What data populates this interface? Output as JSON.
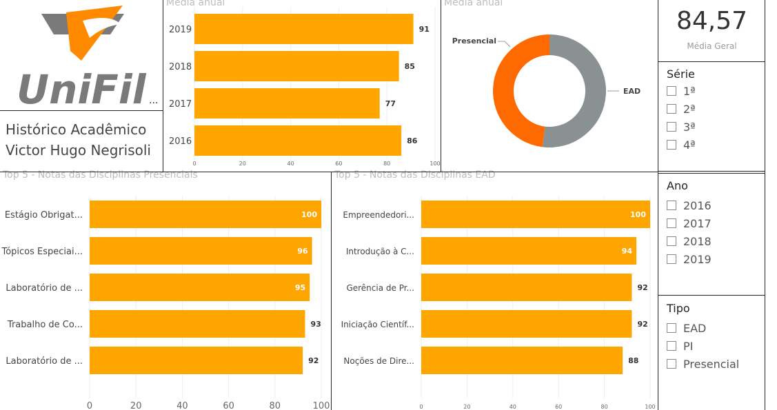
{
  "header": {
    "logo_text": "UniFil",
    "line1": "Histórico Acadêmico",
    "line2": "Victor Hugo Negrisoli",
    "more": "..."
  },
  "card": {
    "value": "84,57",
    "label": "Média Geral"
  },
  "slicers": [
    {
      "title": "Série",
      "options": [
        "1ª",
        "2ª",
        "3ª",
        "4ª"
      ]
    },
    {
      "title": "Ano",
      "options": [
        "2016",
        "2017",
        "2018",
        "2019"
      ]
    },
    {
      "title": "Tipo",
      "options": [
        "EAD",
        "PI",
        "Presencial"
      ]
    }
  ],
  "colors": {
    "bar": "#FFA500",
    "presencial": "#FF6A00",
    "ead": "#8A9193"
  },
  "chart_data": [
    {
      "type": "bar",
      "orientation": "horizontal",
      "title": "Média anual",
      "categories": [
        "2019",
        "2018",
        "2017",
        "2016"
      ],
      "values": [
        91,
        85,
        77,
        86
      ],
      "xlim": [
        0,
        100
      ],
      "xticks": [
        "0",
        "20",
        "40",
        "60",
        "80",
        "100"
      ]
    },
    {
      "type": "pie",
      "donut": true,
      "title": "Média anual",
      "labels": [
        "EAD",
        "Presencial"
      ],
      "values": [
        52,
        48
      ]
    },
    {
      "type": "bar",
      "orientation": "horizontal",
      "title": "Top 5 - Notas das Disciplinas Presenciais",
      "categories": [
        "Estágio Obrigat...",
        "Tópicos Especiai...",
        "Laboratório de ...",
        "Trabalho de Co...",
        "Laboratório de ..."
      ],
      "values": [
        100,
        96,
        95,
        93,
        92
      ],
      "xlim": [
        0,
        100
      ],
      "xticks": [
        "0",
        "20",
        "40",
        "60",
        "80",
        "100"
      ]
    },
    {
      "type": "bar",
      "orientation": "horizontal",
      "title": "Top 5 - Notas das Disciplinas EAD",
      "categories": [
        "Empreendedori...",
        "Introdução à C...",
        "Gerência de Pr...",
        "Iniciação Científ...",
        "Noções de Dire..."
      ],
      "values": [
        100,
        94,
        92,
        92,
        88
      ],
      "xlim": [
        0,
        100
      ],
      "xticks": [
        "0",
        "20",
        "40",
        "60",
        "80",
        "100"
      ]
    }
  ]
}
